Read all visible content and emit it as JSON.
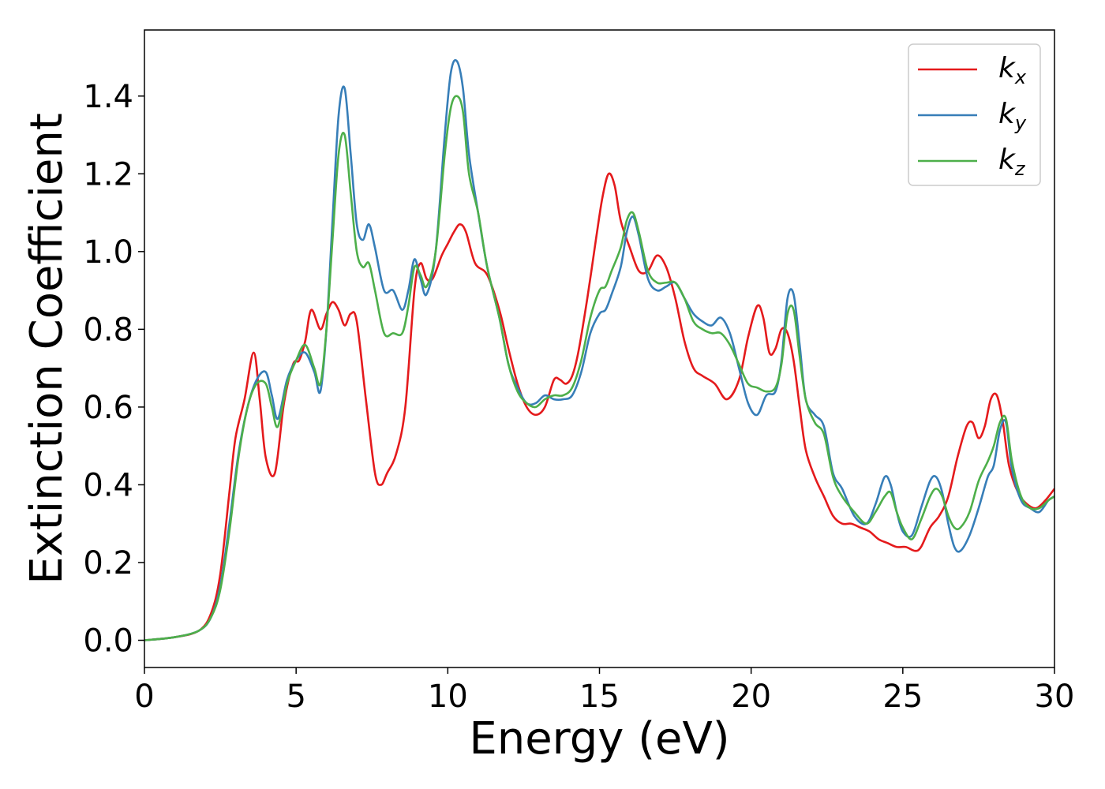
{
  "chart_data": {
    "type": "line",
    "xlabel": "Energy (eV)",
    "ylabel": "Extinction Coefficient",
    "xlim": [
      0,
      30
    ],
    "ylim": [
      -0.07,
      1.57
    ],
    "xticks": [
      0,
      5,
      10,
      15,
      20,
      25,
      30
    ],
    "xtick_labels": [
      "0",
      "5",
      "10",
      "15",
      "20",
      "25",
      "30"
    ],
    "yticks": [
      0.0,
      0.2,
      0.4,
      0.6,
      0.8,
      1.0,
      1.2,
      1.4
    ],
    "ytick_labels": [
      "0.0",
      "0.2",
      "0.4",
      "0.6",
      "0.8",
      "1.0",
      "1.2",
      "1.4"
    ],
    "grid": false,
    "legend_position": "top-right",
    "series": [
      {
        "name": "k_x",
        "label_main": "k",
        "label_sub": "x",
        "color": "#e41a1c",
        "x": [
          0,
          1,
          1.8,
          2.2,
          2.5,
          2.8,
          3.0,
          3.3,
          3.6,
          3.8,
          4.0,
          4.3,
          4.6,
          4.9,
          5.1,
          5.3,
          5.5,
          5.8,
          6.0,
          6.2,
          6.4,
          6.6,
          6.8,
          7.0,
          7.3,
          7.6,
          7.8,
          8.0,
          8.3,
          8.6,
          8.9,
          9.1,
          9.3,
          9.5,
          9.8,
          10.0,
          10.2,
          10.4,
          10.6,
          10.9,
          11.3,
          11.7,
          12.0,
          12.3,
          12.6,
          12.9,
          13.2,
          13.5,
          13.7,
          13.9,
          14.1,
          14.3,
          14.6,
          14.9,
          15.1,
          15.3,
          15.5,
          15.7,
          16.0,
          16.3,
          16.6,
          16.9,
          17.2,
          17.5,
          17.8,
          18.1,
          18.4,
          18.8,
          19.2,
          19.6,
          19.9,
          20.2,
          20.4,
          20.6,
          20.8,
          21.0,
          21.2,
          21.4,
          21.6,
          21.8,
          22.1,
          22.4,
          22.7,
          23.0,
          23.3,
          23.6,
          23.9,
          24.2,
          24.5,
          24.8,
          25.1,
          25.4,
          25.6,
          25.9,
          26.2,
          26.5,
          26.8,
          27.1,
          27.3,
          27.5,
          27.7,
          27.9,
          28.1,
          28.3,
          28.5,
          28.8,
          29.1,
          29.4,
          29.7,
          30.0
        ],
        "y": [
          0.0,
          0.008,
          0.025,
          0.07,
          0.17,
          0.38,
          0.52,
          0.62,
          0.74,
          0.62,
          0.47,
          0.43,
          0.61,
          0.71,
          0.72,
          0.77,
          0.85,
          0.8,
          0.84,
          0.87,
          0.85,
          0.81,
          0.84,
          0.82,
          0.62,
          0.43,
          0.4,
          0.43,
          0.48,
          0.6,
          0.9,
          0.97,
          0.93,
          0.93,
          0.99,
          1.02,
          1.05,
          1.07,
          1.05,
          0.97,
          0.94,
          0.85,
          0.75,
          0.66,
          0.6,
          0.58,
          0.6,
          0.67,
          0.67,
          0.66,
          0.68,
          0.74,
          0.88,
          1.04,
          1.14,
          1.2,
          1.17,
          1.08,
          1.01,
          0.95,
          0.95,
          0.99,
          0.96,
          0.88,
          0.77,
          0.7,
          0.68,
          0.66,
          0.62,
          0.67,
          0.78,
          0.86,
          0.83,
          0.74,
          0.75,
          0.8,
          0.79,
          0.72,
          0.6,
          0.49,
          0.42,
          0.37,
          0.32,
          0.3,
          0.3,
          0.29,
          0.28,
          0.26,
          0.25,
          0.24,
          0.24,
          0.23,
          0.24,
          0.29,
          0.32,
          0.37,
          0.47,
          0.55,
          0.56,
          0.52,
          0.55,
          0.62,
          0.63,
          0.56,
          0.45,
          0.38,
          0.35,
          0.34,
          0.36,
          0.39
        ]
      },
      {
        "name": "k_y",
        "label_main": "k",
        "label_sub": "y",
        "color": "#377eb8",
        "x": [
          0,
          1,
          1.8,
          2.2,
          2.5,
          2.8,
          3.1,
          3.4,
          3.7,
          4.0,
          4.2,
          4.4,
          4.7,
          5.0,
          5.3,
          5.6,
          5.8,
          6.0,
          6.2,
          6.4,
          6.6,
          6.8,
          7.0,
          7.2,
          7.4,
          7.6,
          7.9,
          8.2,
          8.5,
          8.7,
          8.9,
          9.1,
          9.3,
          9.6,
          9.9,
          10.1,
          10.3,
          10.5,
          10.7,
          11.0,
          11.3,
          11.7,
          12.0,
          12.3,
          12.6,
          12.9,
          13.2,
          13.5,
          13.8,
          14.1,
          14.4,
          14.7,
          15.0,
          15.2,
          15.4,
          15.7,
          15.9,
          16.1,
          16.3,
          16.6,
          16.9,
          17.2,
          17.5,
          17.8,
          18.1,
          18.4,
          18.7,
          19.0,
          19.3,
          19.6,
          19.9,
          20.2,
          20.5,
          20.8,
          21.0,
          21.2,
          21.4,
          21.6,
          21.8,
          22.1,
          22.4,
          22.7,
          23.0,
          23.4,
          23.8,
          24.1,
          24.4,
          24.6,
          24.8,
          25.0,
          25.3,
          25.6,
          25.9,
          26.1,
          26.3,
          26.5,
          26.7,
          26.9,
          27.2,
          27.5,
          27.8,
          28.0,
          28.2,
          28.4,
          28.6,
          28.9,
          29.2,
          29.5,
          29.8,
          30.0
        ],
        "y": [
          0.0,
          0.008,
          0.025,
          0.06,
          0.14,
          0.3,
          0.48,
          0.6,
          0.67,
          0.69,
          0.63,
          0.57,
          0.67,
          0.72,
          0.74,
          0.69,
          0.64,
          0.8,
          1.08,
          1.35,
          1.42,
          1.25,
          1.07,
          1.03,
          1.07,
          1.01,
          0.9,
          0.9,
          0.85,
          0.9,
          0.98,
          0.93,
          0.89,
          1.0,
          1.3,
          1.46,
          1.49,
          1.42,
          1.25,
          1.1,
          0.96,
          0.83,
          0.71,
          0.65,
          0.61,
          0.61,
          0.63,
          0.62,
          0.62,
          0.63,
          0.69,
          0.79,
          0.84,
          0.85,
          0.89,
          0.96,
          1.05,
          1.09,
          1.04,
          0.93,
          0.9,
          0.91,
          0.92,
          0.88,
          0.84,
          0.82,
          0.81,
          0.83,
          0.79,
          0.7,
          0.61,
          0.58,
          0.63,
          0.64,
          0.72,
          0.88,
          0.89,
          0.76,
          0.62,
          0.58,
          0.55,
          0.43,
          0.39,
          0.32,
          0.3,
          0.35,
          0.42,
          0.4,
          0.33,
          0.28,
          0.27,
          0.34,
          0.41,
          0.42,
          0.38,
          0.3,
          0.24,
          0.23,
          0.27,
          0.34,
          0.42,
          0.45,
          0.54,
          0.56,
          0.44,
          0.36,
          0.34,
          0.33,
          0.36,
          0.37
        ]
      },
      {
        "name": "k_z",
        "label_main": "k",
        "label_sub": "z",
        "color": "#4daf4a",
        "x": [
          0,
          1,
          1.8,
          2.2,
          2.5,
          2.8,
          3.1,
          3.4,
          3.7,
          4.0,
          4.2,
          4.4,
          4.7,
          5.0,
          5.3,
          5.6,
          5.8,
          6.0,
          6.2,
          6.4,
          6.6,
          6.8,
          7.0,
          7.2,
          7.4,
          7.6,
          7.9,
          8.2,
          8.5,
          8.7,
          8.9,
          9.1,
          9.3,
          9.6,
          9.9,
          10.1,
          10.3,
          10.5,
          10.7,
          11.0,
          11.3,
          11.7,
          12.0,
          12.3,
          12.6,
          12.9,
          13.2,
          13.5,
          13.8,
          14.1,
          14.4,
          14.7,
          15.0,
          15.2,
          15.4,
          15.7,
          15.9,
          16.1,
          16.3,
          16.6,
          16.9,
          17.2,
          17.5,
          17.8,
          18.1,
          18.4,
          18.7,
          19.0,
          19.3,
          19.6,
          19.9,
          20.2,
          20.5,
          20.8,
          21.0,
          21.2,
          21.4,
          21.6,
          21.8,
          22.1,
          22.4,
          22.7,
          23.0,
          23.4,
          23.8,
          24.1,
          24.4,
          24.6,
          24.8,
          25.0,
          25.3,
          25.6,
          25.9,
          26.1,
          26.3,
          26.5,
          26.7,
          26.9,
          27.2,
          27.5,
          27.8,
          28.0,
          28.2,
          28.4,
          28.6,
          28.9,
          29.2,
          29.5,
          29.8,
          30.0
        ],
        "y": [
          0.0,
          0.008,
          0.025,
          0.06,
          0.13,
          0.28,
          0.47,
          0.6,
          0.66,
          0.66,
          0.6,
          0.55,
          0.66,
          0.72,
          0.76,
          0.7,
          0.66,
          0.8,
          1.03,
          1.25,
          1.3,
          1.15,
          1.0,
          0.96,
          0.97,
          0.9,
          0.79,
          0.79,
          0.79,
          0.86,
          0.96,
          0.94,
          0.91,
          1.0,
          1.25,
          1.37,
          1.4,
          1.36,
          1.2,
          1.1,
          0.96,
          0.83,
          0.71,
          0.64,
          0.61,
          0.6,
          0.62,
          0.63,
          0.63,
          0.65,
          0.72,
          0.83,
          0.9,
          0.91,
          0.95,
          1.01,
          1.08,
          1.1,
          1.05,
          0.95,
          0.92,
          0.92,
          0.92,
          0.88,
          0.82,
          0.8,
          0.79,
          0.79,
          0.76,
          0.71,
          0.66,
          0.65,
          0.64,
          0.65,
          0.71,
          0.84,
          0.85,
          0.73,
          0.62,
          0.56,
          0.53,
          0.42,
          0.37,
          0.33,
          0.3,
          0.33,
          0.37,
          0.38,
          0.33,
          0.29,
          0.26,
          0.31,
          0.37,
          0.39,
          0.37,
          0.32,
          0.29,
          0.29,
          0.33,
          0.41,
          0.46,
          0.5,
          0.56,
          0.57,
          0.46,
          0.37,
          0.34,
          0.34,
          0.36,
          0.37
        ]
      }
    ]
  }
}
